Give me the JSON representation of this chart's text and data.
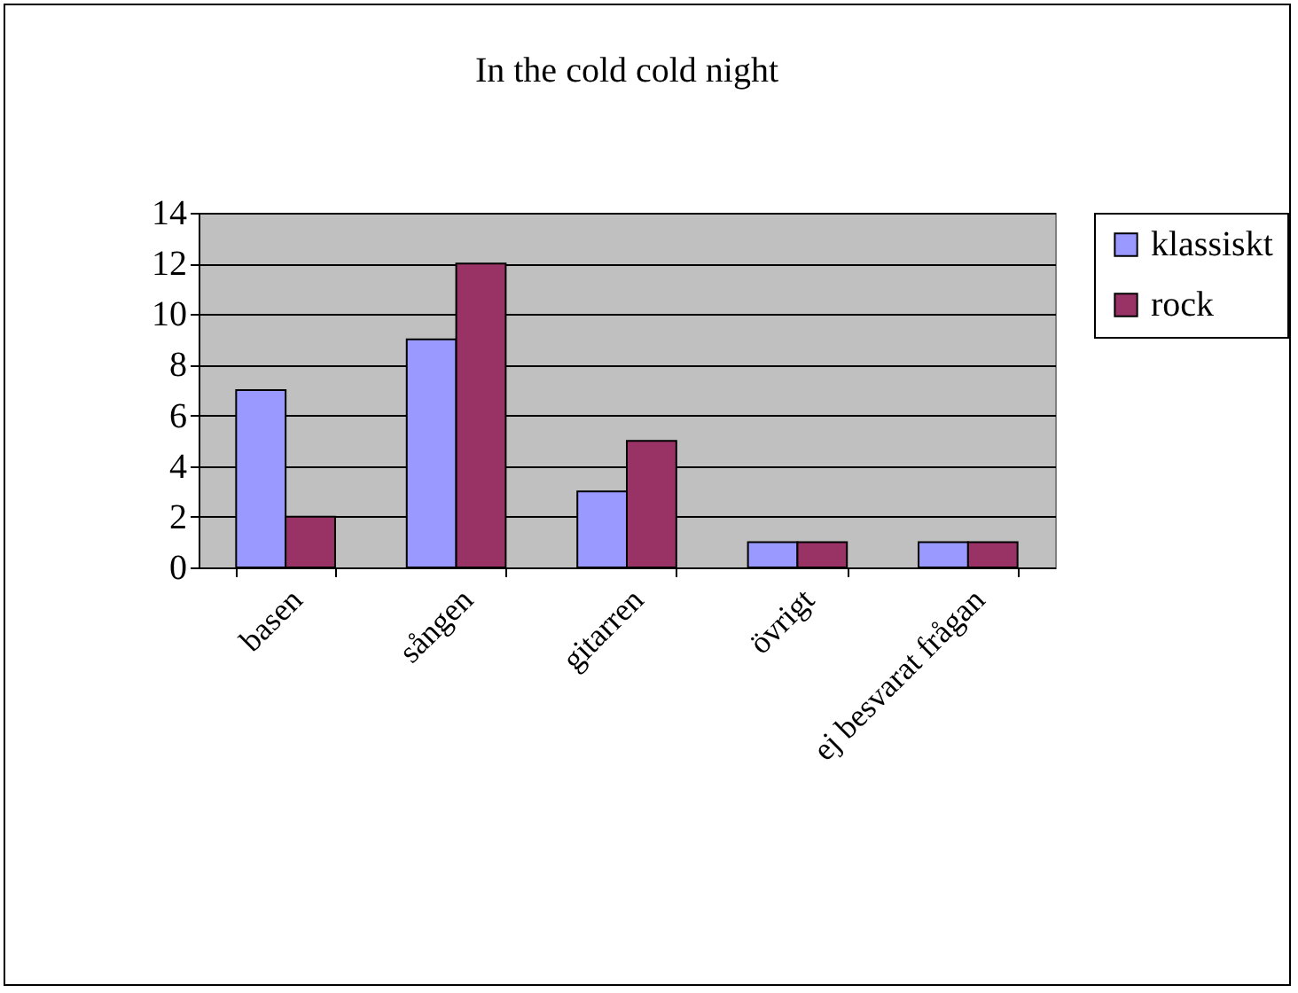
{
  "chart_data": {
    "type": "bar",
    "title": "In the cold cold night",
    "categories": [
      "basen",
      "sången",
      "gitarren",
      "övrigt",
      "ej besvarat frågan"
    ],
    "series": [
      {
        "name": "klassiskt",
        "color": "#9999ff",
        "values": [
          7,
          9,
          3,
          1,
          1
        ]
      },
      {
        "name": "rock",
        "color": "#993366",
        "values": [
          2,
          12,
          5,
          1,
          1
        ]
      }
    ],
    "ylim": [
      0,
      14
    ],
    "yticks": [
      0,
      2,
      4,
      6,
      8,
      10,
      12,
      14
    ],
    "grid": "y",
    "legend": "right"
  }
}
